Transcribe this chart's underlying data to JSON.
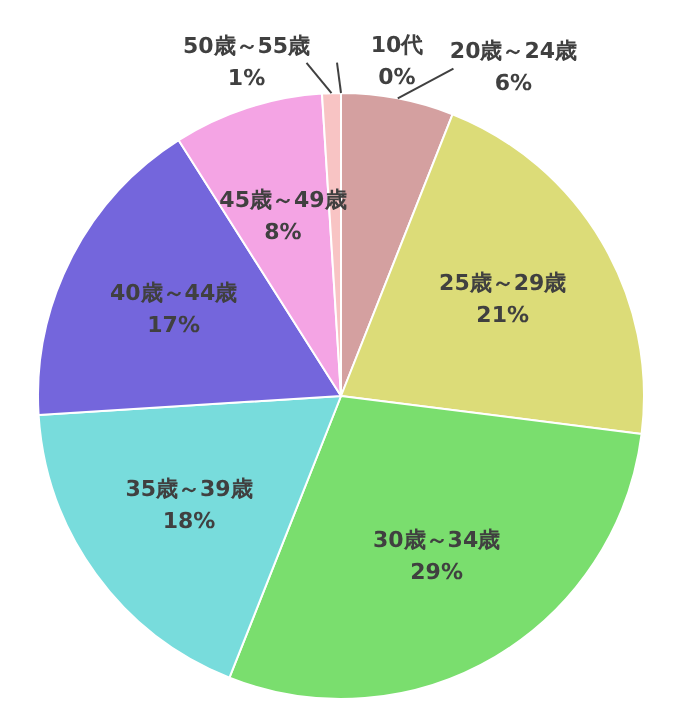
{
  "chart_data": {
    "type": "pie",
    "categories": [
      "10代",
      "20歳～24歳",
      "25歳～29歳",
      "30歳～34歳",
      "35歳～39歳",
      "40歳～44歳",
      "45歳～49歳",
      "50歳～55歳"
    ],
    "values": [
      0,
      6,
      21,
      29,
      18,
      17,
      8,
      1
    ],
    "value_labels": [
      "0%",
      "6%",
      "21%",
      "29%",
      "18%",
      "17%",
      "8%",
      "1%"
    ],
    "colors": [
      "#a040b0",
      "#d4a0a0",
      "#dcdc78",
      "#7ade6e",
      "#78dcdc",
      "#7466dc",
      "#f4a4e4",
      "#f8c4c4"
    ],
    "legend": false
  }
}
